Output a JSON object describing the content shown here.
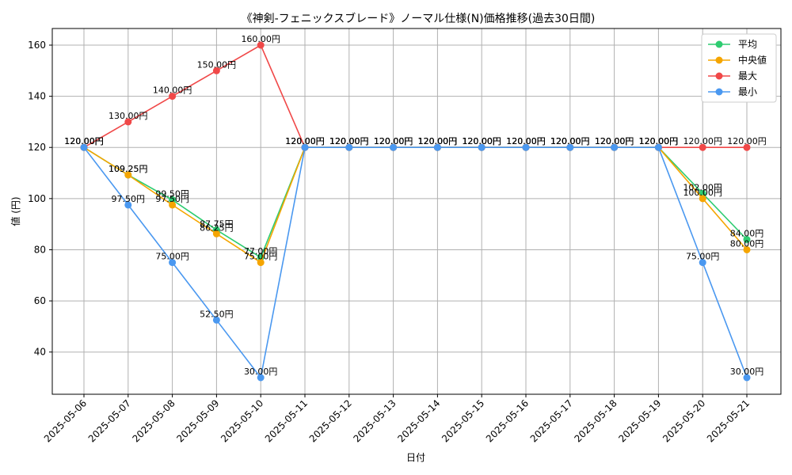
{
  "chart_data": {
    "type": "line",
    "title": "《神剣-フェニックスブレード》ノーマル仕様(N)価格推移(過去30日間)",
    "xlabel": "日付",
    "ylabel": "値 (円)",
    "ylim": [
      23.5,
      166.5
    ],
    "yticks": [
      40,
      60,
      80,
      100,
      120,
      140,
      160
    ],
    "grid": true,
    "legend_position": "top-right",
    "label_suffix": "円",
    "categories": [
      "2025-05-06",
      "2025-05-07",
      "2025-05-08",
      "2025-05-09",
      "2025-05-10",
      "2025-05-11",
      "2025-05-12",
      "2025-05-13",
      "2025-05-14",
      "2025-05-15",
      "2025-05-16",
      "2025-05-17",
      "2025-05-18",
      "2025-05-19",
      "2025-05-20",
      "2025-05-21"
    ],
    "series": [
      {
        "name": "平均",
        "color": "#2ecc71",
        "values": [
          120,
          109.25,
          99.5,
          87.75,
          77.0,
          120,
          120,
          120,
          120,
          120,
          120,
          120,
          120,
          120,
          102.0,
          84.0
        ]
      },
      {
        "name": "中央値",
        "color": "#f5a500",
        "values": [
          120,
          109.25,
          97.5,
          86.25,
          75.0,
          120,
          120,
          120,
          120,
          120,
          120,
          120,
          120,
          120,
          100.0,
          80.0
        ]
      },
      {
        "name": "最大",
        "color": "#f04848",
        "values": [
          120,
          130,
          140,
          150,
          160,
          120,
          120,
          120,
          120,
          120,
          120,
          120,
          120,
          120,
          120,
          120
        ]
      },
      {
        "name": "最小",
        "color": "#4a98f0",
        "values": [
          120,
          97.5,
          75,
          52.5,
          30,
          120,
          120,
          120,
          120,
          120,
          120,
          120,
          120,
          120,
          75,
          30
        ]
      }
    ]
  }
}
